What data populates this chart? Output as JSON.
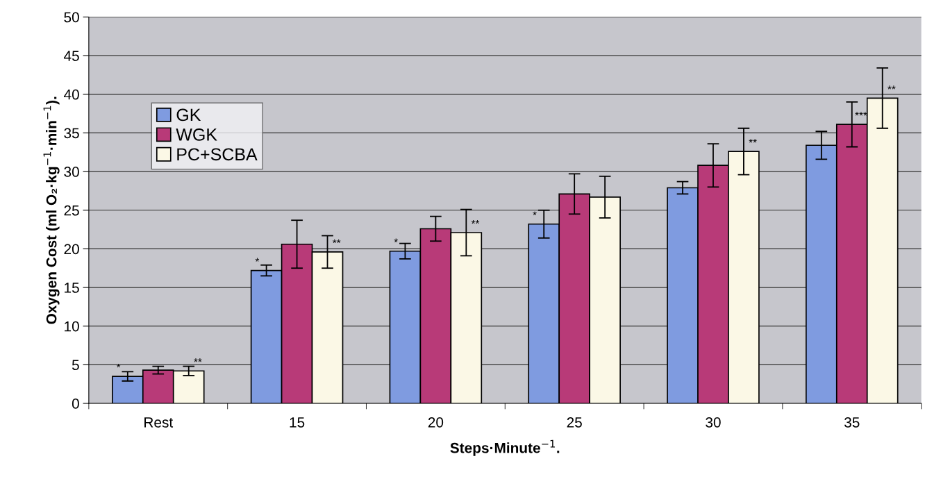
{
  "chart_data": {
    "type": "bar",
    "categories": [
      "Rest",
      "15",
      "20",
      "25",
      "30",
      "35"
    ],
    "xlabel": "Steps·Minute$^{−1}$.",
    "ylabel": "Oxygen Cost (ml O₂·kg$^{−1}$·min$^{−1}$).",
    "ylim": [
      0,
      50
    ],
    "yticks": [
      0,
      5,
      10,
      15,
      20,
      25,
      30,
      35,
      40,
      45,
      50
    ],
    "grid": "y",
    "legend": "top left",
    "series": [
      {
        "name": "GK",
        "color": "#7f9be0",
        "values": [
          3.5,
          17.2,
          19.7,
          23.2,
          27.9,
          33.4
        ],
        "errors": [
          0.6,
          0.7,
          1.0,
          1.8,
          0.8,
          1.8
        ],
        "value_labels": [
          "*",
          "*",
          "*",
          "*",
          null,
          null
        ]
      },
      {
        "name": "WGK",
        "color": "#b83a78",
        "values": [
          4.3,
          20.6,
          22.6,
          27.1,
          30.8,
          36.1
        ],
        "errors": [
          0.5,
          3.1,
          1.6,
          2.6,
          2.8,
          2.9
        ],
        "value_labels": [
          null,
          null,
          null,
          null,
          null,
          "***"
        ]
      },
      {
        "name": "PC+SCBA",
        "color": "#fbf8e6",
        "values": [
          4.2,
          19.6,
          22.1,
          26.7,
          32.6,
          39.5
        ],
        "errors": [
          0.6,
          2.1,
          3.0,
          2.7,
          3.0,
          3.9
        ],
        "value_labels": [
          "**",
          "**",
          "**",
          null,
          "**",
          "**"
        ]
      }
    ]
  }
}
